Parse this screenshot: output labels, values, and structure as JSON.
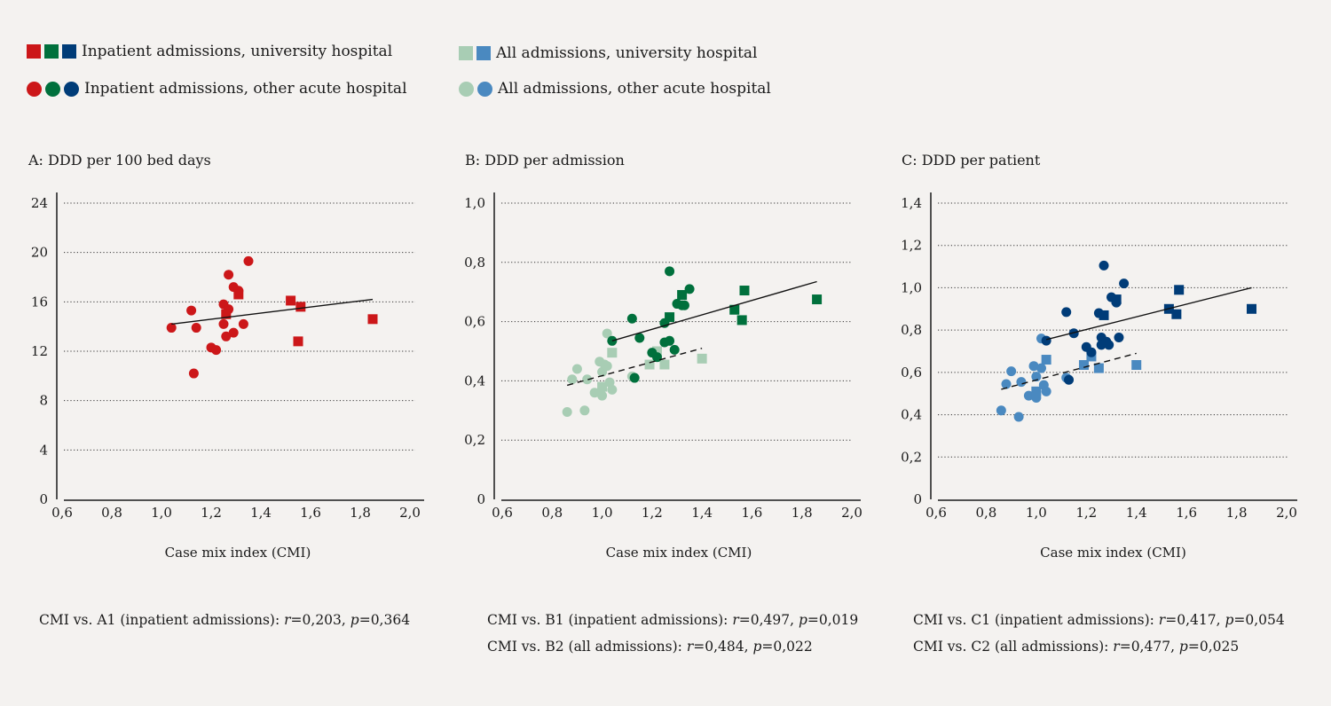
{
  "legend": [
    {
      "label": "Inpatient admissions, university hospital",
      "shape": "square",
      "colors": [
        "#cc1719",
        "#00703c",
        "#003c78"
      ]
    },
    {
      "label": "All admissions, university hospital",
      "shape": "square",
      "colors": [
        "#a8cdb4",
        "#4a89c0"
      ]
    },
    {
      "label": "Inpatient admissions, other acute hospital",
      "shape": "circle",
      "colors": [
        "#cc1719",
        "#00703c",
        "#003c78"
      ]
    },
    {
      "label": "All admissions, other acute hospital",
      "shape": "circle",
      "colors": [
        "#a8cdb4",
        "#4a89c0"
      ]
    }
  ],
  "chart_data": [
    {
      "type": "scatter",
      "title": "A: DDD per 100 bed days",
      "xlabel": "Case mix index (CMI)",
      "ylabel": "",
      "xlim": [
        0.6,
        2.0
      ],
      "ylim": [
        0,
        24
      ],
      "xticks": [
        "0,6",
        "0,8",
        "1,0",
        "1,2",
        "1,4",
        "1,6",
        "1,8",
        "2,0"
      ],
      "yticks": [
        "0",
        "4",
        "8",
        "12",
        "16",
        "20",
        "24"
      ],
      "grid": "horizontal dotted",
      "series": [
        {
          "group": "Inpatient admissions, other acute hospital",
          "marker": "circle",
          "color": "#cc1719",
          "points": [
            [
              1.04,
              13.9
            ],
            [
              1.12,
              15.3
            ],
            [
              1.13,
              10.2
            ],
            [
              1.14,
              13.9
            ],
            [
              1.2,
              12.3
            ],
            [
              1.22,
              12.1
            ],
            [
              1.25,
              15.8
            ],
            [
              1.25,
              14.2
            ],
            [
              1.26,
              13.2
            ],
            [
              1.27,
              18.2
            ],
            [
              1.27,
              15.4
            ],
            [
              1.29,
              13.5
            ],
            [
              1.29,
              17.2
            ],
            [
              1.31,
              16.9
            ],
            [
              1.33,
              14.2
            ],
            [
              1.35,
              19.3
            ]
          ]
        },
        {
          "group": "Inpatient admissions, university hospital",
          "marker": "square",
          "color": "#cc1719",
          "points": [
            [
              1.26,
              15.0
            ],
            [
              1.31,
              16.6
            ],
            [
              1.52,
              16.1
            ],
            [
              1.56,
              15.6
            ],
            [
              1.55,
              12.8
            ],
            [
              1.85,
              14.6
            ]
          ]
        }
      ],
      "trendlines": [
        {
          "style": "solid",
          "from": [
            1.04,
            14.2
          ],
          "to": [
            1.85,
            16.2
          ]
        }
      ],
      "notes": [
        {
          "prefix": "CMI vs. A1 (inpatient admissions): ",
          "r_label": "r",
          "r": "=0,203, ",
          "p_label": "p",
          "p": "=0,364"
        }
      ]
    },
    {
      "type": "scatter",
      "title": "B: DDD per admission",
      "xlabel": "Case mix index (CMI)",
      "ylabel": "",
      "xlim": [
        0.6,
        2.0
      ],
      "ylim": [
        0,
        1.0
      ],
      "xticks": [
        "0,6",
        "0,8",
        "1,0",
        "1,2",
        "1,4",
        "1,6",
        "1,8",
        "2,0"
      ],
      "yticks": [
        "0",
        "0,2",
        "0,4",
        "0,6",
        "0,8",
        "1,0"
      ],
      "grid": "horizontal dotted",
      "series": [
        {
          "group": "All admissions, other acute hospital",
          "marker": "circle",
          "color": "#a8cdb4",
          "points": [
            [
              0.86,
              0.295
            ],
            [
              0.88,
              0.405
            ],
            [
              0.9,
              0.44
            ],
            [
              0.93,
              0.3
            ],
            [
              0.94,
              0.405
            ],
            [
              0.97,
              0.36
            ],
            [
              0.99,
              0.465
            ],
            [
              1.0,
              0.35
            ],
            [
              1.0,
              0.43
            ],
            [
              1.01,
              0.455
            ],
            [
              1.02,
              0.56
            ],
            [
              1.02,
              0.45
            ],
            [
              1.03,
              0.395
            ],
            [
              1.04,
              0.37
            ],
            [
              1.12,
              0.415
            ]
          ]
        },
        {
          "group": "All admissions, university hospital",
          "marker": "square",
          "color": "#a8cdb4",
          "points": [
            [
              1.0,
              0.38
            ],
            [
              1.04,
              0.495
            ],
            [
              1.19,
              0.455
            ],
            [
              1.22,
              0.5
            ],
            [
              1.25,
              0.455
            ],
            [
              1.4,
              0.475
            ]
          ]
        },
        {
          "group": "Inpatient admissions, other acute hospital",
          "marker": "circle",
          "color": "#00703c",
          "points": [
            [
              1.04,
              0.535
            ],
            [
              1.12,
              0.61
            ],
            [
              1.13,
              0.41
            ],
            [
              1.15,
              0.545
            ],
            [
              1.2,
              0.495
            ],
            [
              1.22,
              0.48
            ],
            [
              1.25,
              0.595
            ],
            [
              1.25,
              0.53
            ],
            [
              1.27,
              0.535
            ],
            [
              1.27,
              0.77
            ],
            [
              1.29,
              0.505
            ],
            [
              1.3,
              0.66
            ],
            [
              1.32,
              0.655
            ],
            [
              1.33,
              0.655
            ],
            [
              1.35,
              0.71
            ]
          ]
        },
        {
          "group": "Inpatient admissions, university hospital",
          "marker": "square",
          "color": "#00703c",
          "points": [
            [
              1.27,
              0.615
            ],
            [
              1.32,
              0.69
            ],
            [
              1.53,
              0.64
            ],
            [
              1.57,
              0.705
            ],
            [
              1.56,
              0.605
            ],
            [
              1.86,
              0.675
            ]
          ]
        }
      ],
      "trendlines": [
        {
          "style": "solid",
          "from": [
            1.04,
            0.535
          ],
          "to": [
            1.86,
            0.735
          ]
        },
        {
          "style": "dashed",
          "from": [
            0.86,
            0.385
          ],
          "to": [
            1.4,
            0.51
          ]
        }
      ],
      "notes": [
        {
          "prefix": "CMI vs. B1 (inpatient admissions): ",
          "r_label": "r",
          "r": "=0,497, ",
          "p_label": "p",
          "p": "=0,019"
        },
        {
          "prefix": "CMI vs. B2 (all admissions): ",
          "r_label": "r",
          "r": "=0,484, ",
          "p_label": "p",
          "p": "=0,022"
        }
      ]
    },
    {
      "type": "scatter",
      "title": "C: DDD per patient",
      "xlabel": "Case mix index (CMI)",
      "ylabel": "",
      "xlim": [
        0.6,
        2.0
      ],
      "ylim": [
        0,
        1.4
      ],
      "xticks": [
        "0,6",
        "0,8",
        "1,0",
        "1,2",
        "1,4",
        "1,6",
        "1,8",
        "2,0"
      ],
      "yticks": [
        "0",
        "0,2",
        "0,4",
        "0,6",
        "0,8",
        "1,0",
        "1,2",
        "1,4"
      ],
      "grid": "horizontal dotted",
      "series": [
        {
          "group": "All admissions, other acute hospital",
          "marker": "circle",
          "color": "#4a89c0",
          "points": [
            [
              0.86,
              0.42
            ],
            [
              0.88,
              0.545
            ],
            [
              0.9,
              0.605
            ],
            [
              0.93,
              0.39
            ],
            [
              0.94,
              0.555
            ],
            [
              0.97,
              0.49
            ],
            [
              0.99,
              0.63
            ],
            [
              1.0,
              0.58
            ],
            [
              1.0,
              0.48
            ],
            [
              1.02,
              0.62
            ],
            [
              1.03,
              0.54
            ],
            [
              1.04,
              0.51
            ],
            [
              1.02,
              0.76
            ],
            [
              1.12,
              0.575
            ]
          ]
        },
        {
          "group": "All admissions, university hospital",
          "marker": "square",
          "color": "#4a89c0",
          "points": [
            [
              1.0,
              0.51
            ],
            [
              1.04,
              0.66
            ],
            [
              1.19,
              0.635
            ],
            [
              1.22,
              0.675
            ],
            [
              1.25,
              0.62
            ],
            [
              1.4,
              0.635
            ]
          ]
        },
        {
          "group": "Inpatient admissions, other acute hospital",
          "marker": "circle",
          "color": "#003c78",
          "points": [
            [
              1.04,
              0.75
            ],
            [
              1.12,
              0.885
            ],
            [
              1.13,
              0.565
            ],
            [
              1.15,
              0.785
            ],
            [
              1.2,
              0.72
            ],
            [
              1.22,
              0.695
            ],
            [
              1.25,
              0.88
            ],
            [
              1.26,
              0.765
            ],
            [
              1.26,
              0.73
            ],
            [
              1.27,
              1.105
            ],
            [
              1.28,
              0.745
            ],
            [
              1.29,
              0.73
            ],
            [
              1.3,
              0.955
            ],
            [
              1.32,
              0.93
            ],
            [
              1.33,
              0.765
            ],
            [
              1.35,
              1.02
            ]
          ]
        },
        {
          "group": "Inpatient admissions, university hospital",
          "marker": "square",
          "color": "#003c78",
          "points": [
            [
              1.27,
              0.87
            ],
            [
              1.32,
              0.945
            ],
            [
              1.53,
              0.9
            ],
            [
              1.57,
              0.99
            ],
            [
              1.56,
              0.875
            ],
            [
              1.86,
              0.9
            ]
          ]
        }
      ],
      "trendlines": [
        {
          "style": "solid",
          "from": [
            1.04,
            0.755
          ],
          "to": [
            1.86,
            1.0
          ]
        },
        {
          "style": "dashed",
          "from": [
            0.86,
            0.52
          ],
          "to": [
            1.4,
            0.69
          ]
        }
      ],
      "notes": [
        {
          "prefix": "CMI vs. C1 (inpatient admissions): ",
          "r_label": "r",
          "r": "=0,417, ",
          "p_label": "p",
          "p": "=0,054"
        },
        {
          "prefix": "CMI vs. C2 (all admissions): ",
          "r_label": "r",
          "r": "=0,477, ",
          "p_label": "p",
          "p": "=0,025"
        }
      ]
    }
  ]
}
